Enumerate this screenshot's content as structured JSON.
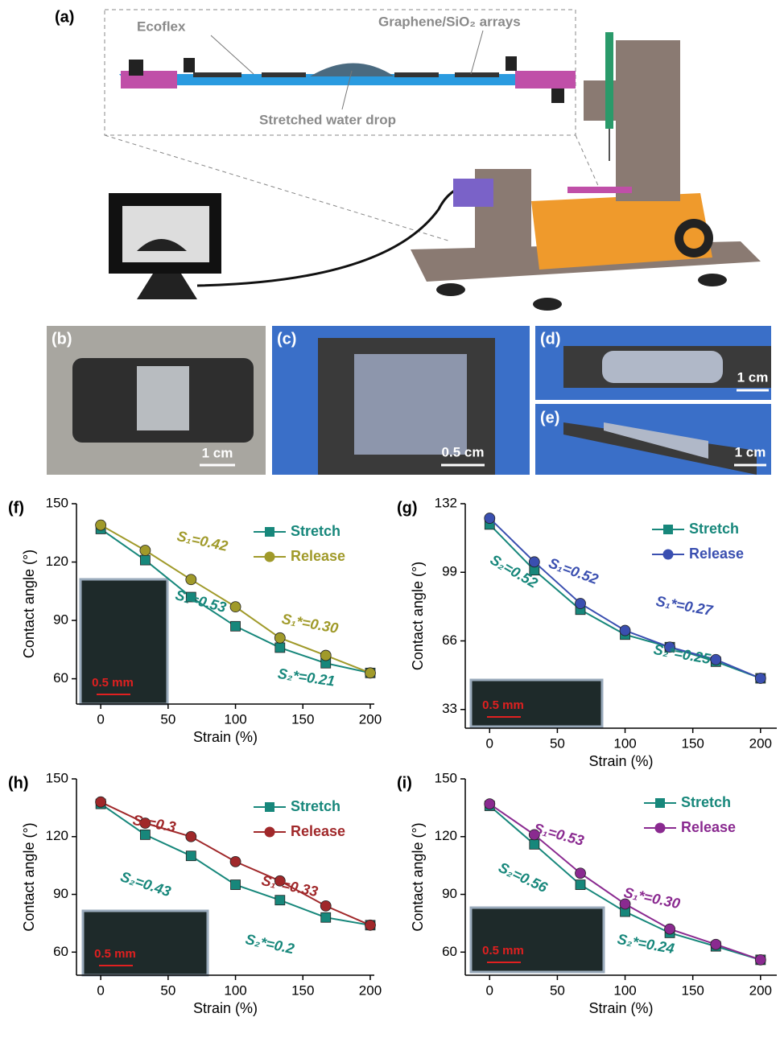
{
  "figure": {
    "a": {
      "label": "(a)",
      "texts": [
        "Ecoflex",
        "Graphene/SiO₂ arrays",
        "Stretched water drop"
      ]
    },
    "photos": [
      {
        "label": "(b)",
        "scale": "1 cm"
      },
      {
        "label": "(c)",
        "scale": "0.5 cm"
      },
      {
        "label": "(d)",
        "scale": "1 cm"
      },
      {
        "label": "(e)",
        "scale": "1 cm"
      }
    ]
  },
  "chart_data": [
    {
      "type": "line",
      "panel_label": "(f)",
      "xlabel": "Strain (%)",
      "ylabel": "Contact angle (°)",
      "x": [
        0,
        33,
        67,
        100,
        133,
        167,
        200
      ],
      "xlim": [
        -18,
        203
      ],
      "xticks": [
        0,
        50,
        100,
        150,
        200
      ],
      "ylim": [
        47,
        150
      ],
      "yticks": [
        60,
        90,
        120,
        150
      ],
      "legend": "upper right",
      "series": [
        {
          "name": "Stretch",
          "color": "#17877b",
          "marker": "square",
          "values": [
            137,
            121,
            102,
            87,
            76,
            68,
            63
          ]
        },
        {
          "name": "Release",
          "color": "#a09a2a",
          "marker": "circle",
          "values": [
            139,
            126,
            111,
            97,
            81,
            72,
            63
          ]
        }
      ],
      "annotations": [
        "S₁=0.42",
        "S₂=0.53",
        "S₁*=0.30",
        "S₂*=0.21"
      ],
      "inset_scale": "0.5 mm"
    },
    {
      "type": "line",
      "panel_label": "(g)",
      "xlabel": "Strain (%)",
      "ylabel": "Contact angle (°)",
      "x": [
        0,
        33,
        67,
        100,
        133,
        167,
        200
      ],
      "xlim": [
        -18,
        212
      ],
      "xticks": [
        0,
        50,
        100,
        150,
        200
      ],
      "ylim": [
        24,
        132
      ],
      "yticks": [
        33,
        66,
        99,
        132
      ],
      "legend": "upper right",
      "series": [
        {
          "name": "Stretch",
          "color": "#17877b",
          "marker": "square",
          "values": [
            122,
            100,
            81,
            69,
            63,
            56,
            48
          ]
        },
        {
          "name": "Release",
          "color": "#3a4fb0",
          "marker": "circle",
          "values": [
            125,
            104,
            84,
            71,
            63,
            57,
            48
          ]
        }
      ],
      "annotations": [
        "S₁=0.52",
        "S₂=0.52",
        "S₁*=0.27",
        "S₂*=0.25"
      ],
      "inset_scale": "0.5 mm"
    },
    {
      "type": "line",
      "panel_label": "(h)",
      "xlabel": "Strain (%)",
      "ylabel": "Contact angle (°)",
      "x": [
        0,
        33,
        67,
        100,
        133,
        167,
        200
      ],
      "xlim": [
        -18,
        203
      ],
      "xticks": [
        0,
        50,
        100,
        150,
        200
      ],
      "ylim": [
        48,
        150
      ],
      "yticks": [
        60,
        90,
        120,
        150
      ],
      "legend": "upper right",
      "series": [
        {
          "name": "Stretch",
          "color": "#17877b",
          "marker": "square",
          "values": [
            137,
            121,
            110,
            95,
            87,
            78,
            74
          ]
        },
        {
          "name": "Release",
          "color": "#a0282a",
          "marker": "circle",
          "values": [
            138,
            127,
            120,
            107,
            97,
            84,
            74
          ]
        }
      ],
      "annotations": [
        "S₁=0.3",
        "S₂=0.43",
        "S₁*=0.33",
        "S₂*=0.2"
      ],
      "inset_scale": "0.5 mm"
    },
    {
      "type": "line",
      "panel_label": "(i)",
      "xlabel": "Strain (%)",
      "ylabel": "Contact angle (°)",
      "x": [
        0,
        33,
        67,
        100,
        133,
        167,
        200
      ],
      "xlim": [
        -18,
        212
      ],
      "xticks": [
        0,
        50,
        100,
        150,
        200
      ],
      "ylim": [
        48,
        150
      ],
      "yticks": [
        60,
        90,
        120,
        150
      ],
      "legend": "upper right",
      "series": [
        {
          "name": "Stretch",
          "color": "#17877b",
          "marker": "square",
          "values": [
            136,
            116,
            95,
            81,
            70,
            63,
            56
          ]
        },
        {
          "name": "Release",
          "color": "#8a2a90",
          "marker": "circle",
          "values": [
            137,
            121,
            101,
            85,
            72,
            64,
            56
          ]
        }
      ],
      "annotations": [
        "S₁=0.53",
        "S₂=0.56",
        "S₁*=0.30",
        "S₂*=0.24"
      ],
      "inset_scale": "0.5 mm"
    }
  ]
}
